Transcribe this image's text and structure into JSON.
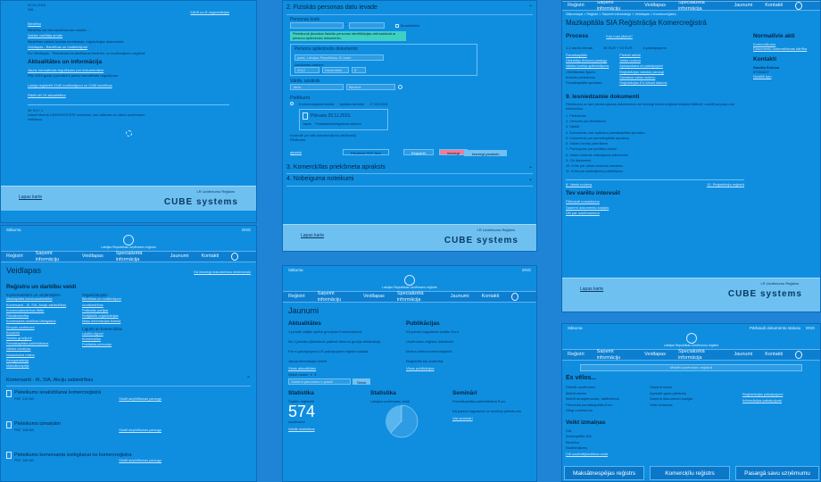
{
  "panel1": {
    "date": "22.01.2015.",
    "sia": "SIA",
    "back_link": "Kārtīt uz šī organizācijas",
    "items": [
      "Biedrība",
      "Biedrība vai cita struktūra kas nosūta ...",
      "Valdes vadītāja amats",
      "Biedrības valdes locekļa iecelšanas, reģistrācijas dokuments",
      "Veidlapas - Biedrības un nodibinājumi",
      "EU Veidlapas - Pieteikums ierakstīšanai biedrību un nodibinājumu registrā"
    ],
    "actual_heading": "Aktualitātes un informācija",
    "actual_items": [
      "Jauns normatīvais regulējums par dokumentiem",
      "Pēc 2015.gada 1.janvāra ir jauns normatīvais regulējums.",
      "Latvija reģistrēti 2340 nodibinājumi un 2456 biedrības"
    ],
    "news_link": "Rādīt vēl 15 aktualitātes",
    "note": "Nr. 5.9 / 1",
    "note_text": "Izdarīt likumā UNIVERSITĀTE izmaiņas, kas attiecas uz vārdu uzņēmumu veikšanu.",
    "footer_link": "Lapas karte",
    "footer_owner": "LR Uzņēmumu Reģistrs",
    "footer_brand": "CUBE systems"
  },
  "panel2": {
    "step2": "2. Fiziskās personas datu ievade",
    "personal_code": "Personas kods",
    "no_code": "Personai nav personas koda",
    "non_resident": "Ārvalstnieks",
    "notice": "Pieteikumā jānorāda fiziskās personas identifikācijas dati saskaņā ar personu apliecinošu dokumentu.",
    "doc_label": "Personu apliecinošs dokuments",
    "doc_placeholder": "pase, Latvijas Republikas ID karte",
    "date_label": "Izdošanas datums",
    "year": "2012",
    "month": "Decembris",
    "day": "8",
    "name_label": "Vārds, uzvārds",
    "name_value": "Jānis",
    "surname_value": "Bērziņš",
    "applications": "Pielikumi",
    "radio_cr": "Komercreģistra fiziskā",
    "due": "Izpildes termiņš",
    "date_value": "17.03.2015.",
    "file_name": "Pilnvara 29.11.2015.",
    "opt1": "Japas",
    "opt2": "Paraksta/iesniegšanas datums",
    "sign_btn": "Iesniegt parakstu",
    "radio_other": "Kontrolē (ar citā dokumentā kā pielikumā)",
    "radio_apply": "Pielikums",
    "add_file": "Pievienot PDF failu",
    "back": "atpakaļ",
    "next": "Reģistrēt",
    "cancel": "Iesniegt",
    "step3": "3. Komercķīlas priekšmeta apraksts",
    "step4": "4. Nobeiguma noteikumi",
    "footer_link": "Lapas karte",
    "footer_owner": "LR Uzņēmumu Reģistrs",
    "footer_brand": "CUBE systems"
  },
  "panel3": {
    "nav": [
      "Reģistri",
      "Saņemt informāciju",
      "Veidlapas",
      "Specializētā informācija",
      "Jaunumi",
      "Kontakti"
    ],
    "breadcrumb": "Sākumlapa > Reģistri > Saņemt informāciju > Veidlapas > Komercreģistrs",
    "title": "Mazkapitāla SIA Reģistrācija Komercreģistrā",
    "process": "Process",
    "process_links": [
      "Kas man jāzina?"
    ],
    "normative": "Normatīvie akti",
    "normative_links": [
      "Komerclikums",
      "Dokumentu noformēšanas kārtība"
    ],
    "contacts": "Kontakti",
    "contact_name": "Sandra Kalniņa",
    "contact_phone": "67031627",
    "contact_email": "Nosūtīt epu",
    "steps": [
      "1-2 darba dienas",
      "35 EUR + 10 EUR",
      "e-pakalpojums"
    ],
    "left_list": [
      "Pamatkapitāls",
      "Dibinātāju lēmuma paraugs",
      "Valdes locekļa apliecinājums",
      "Dibināšanas līgums",
      "Ierakstu pieteikums",
      "Pamatkapitāla apmaksa"
    ],
    "right_list": [
      "Pieteikt atbildi",
      "Valsts nodeva",
      "Apkalpošana un pakalpojumi",
      "Reģistrācijas valodas paraugi",
      "Samaksa valsts nodevu",
      "Reģistrācijas EU fiziskā datums"
    ],
    "docs_heading": "9. Iesniedzamie dokumenti",
    "docs_text": "Pieteikumu un tam pievienojamos dokumentus var iesniegt komercreģistra iestādei klātienē, nosūtīt pa pastu vai elektroniski.",
    "docs_list": [
      "1. Pieteikums",
      "2. Lēmums par dibināšanu",
      "3. Statūti",
      "4. Dokuments, kas apliecina pamatkapitāla apmaksu",
      "5. Dokuments par pamatkapitāla apmaksu",
      "6. Valdes locekļu piekrišana",
      "7. Paziņojums par juridisko adresi",
      "8. Valsts nodevas maksājuma dokuments",
      "9. Citi dokumenti",
      "10. Kvīts par valsts nodevas samaksu",
      "11. Kvīts par sludinājuma publicēšanu"
    ],
    "prev_link": "8. Valsts nodeva",
    "next_link": "10. Reģistrācija reģistrā",
    "interest": "Tev varētu interesēt",
    "interest_links": [
      "Pārbaudi nosaukumu",
      "Saņemt dokumentu kopijas",
      "Vēl par uzņēmumiem"
    ],
    "footer_link": "Lapas karte",
    "footer_owner": "LR Uzņēmumu Reģistrs",
    "footer_brand": "CUBE systems"
  },
  "panel4": {
    "top_left": "Sākuma",
    "top_right": "ENG",
    "org": "Latvijas Republikas Uzņēmumu reģistrs",
    "nav": [
      "Reģistri",
      "Saņemt informāciju",
      "Veidlapas",
      "Specializētā informācija",
      "Jaunumi",
      "Kontakti"
    ],
    "title": "Veidlapas",
    "hint": "Kā iesniegt dokumentus elektroniski",
    "col1_heading": "Reģistru un darbību veidi",
    "col1_sub": "Komersantiem un uzņēmējiem",
    "col1": [
      "Mazkapitāla komercsabiedrība",
      "Komersanti - IK, SIA, Akciju sabiedrības",
      "Komercsabiedrības filiāle",
      "Pārstāvniecība",
      "Komersanta darbības izbeigšana",
      "Eiropas uzņēmumi",
      "Koncerni",
      "Statūtu grozījumi",
      "Pamatkapitāla palielināšana",
      "Valdes izmaiņas",
      "Nosaukuma maiņa",
      "Reorganizācija",
      "Maksātnespēja"
    ],
    "col2_sub": "Organizācijām",
    "col2": [
      "Biedrības un nodibinājumi",
      "Arodbiedrības",
      "Politiskās partijas",
      "Reliģiskās organizācijas",
      "Masu informācijas līdzekļi"
    ],
    "col3_sub": "Līgumi un komercķīlas",
    "col3": [
      "Laulību līgumi",
      "Komercķīlas",
      "Publiskās personas"
    ],
    "accordion": "Komersanti - IK, SIA, Akciju sabiedrības",
    "forms": [
      {
        "title": "Pieteikums ierakstīšanai komercreģistrā",
        "meta": "PDF, 210 KB",
        "link": "Skatīt aizpildīšanas paraugu"
      },
      {
        "title": "Pieteikums izmaiņām",
        "meta": "PDF, 196 KB",
        "link": "Skatīt aizpildīšanas paraugu"
      },
      {
        "title": "Pieteikums komersanta izslēgšanai no komercreģistra",
        "meta": "PDF, 180 KB",
        "link": "Skatīt aizpildīšanas paraugu"
      }
    ]
  },
  "panel5": {
    "top_left": "Sākuma",
    "top_right": "ENG",
    "org": "Latvijas Republikas Uzņēmumu reģistrs",
    "nav": [
      "Reģistri",
      "Saņemt informāciju",
      "Veidlapas",
      "Specializētā informācija",
      "Jaunumi",
      "Kontakti"
    ],
    "title": "Jaunumi",
    "news_heading": "Aktualitātes",
    "news": [
      "1.janvārī stājās spēkā grozījumi Komerclikumā",
      "No 1.janvāra jāiesniedz patiesā labuma guvēja deklarācija",
      "Par e-pakalpojuma LR pakalpojumi reģistra sadaļa",
      "Jauna informācija vietnē"
    ],
    "news_link": "Visas aktualitātes",
    "follow": "Sekot mums",
    "subscribe_placeholder": "Saņemt jaunumus e-pastā",
    "subscribe_btn": "Sekot",
    "pub_heading": "Publikācijas",
    "pubs": [
      "Kā pareizi sagatavot statūtu Euro",
      "Uzņēmumu reģistrs laikrakstā",
      "Maziņi prieka komercreģistrā",
      "Reģistrēts kā uzņēmējs"
    ],
    "pub_link": "Visas publikācijas",
    "stats_heading": "Statistika",
    "stats_label": "Šodien reģistrēti",
    "stats_value": "574",
    "stats_unit": "uzņēmumi",
    "stats_link": "Vairāk statistikas",
    "stats2_heading": "Statistika",
    "stats2_label": "Latvijas uzņēmumu veidi",
    "seminar_heading": "Semināri",
    "seminars": [
      "Pamatkapitāla palielināšana Euro",
      "Kā pareizi sagatavot un iesniegt pieteikumu"
    ],
    "seminar_link": "Visi semināri",
    "chart_slice": 0.62
  },
  "panel6": {
    "top_left": "Sākuma",
    "top_right": "ENG",
    "fav": "Pārbaudi dokumentu statusu",
    "org": "Latvijas Republikas Uzņēmumu reģistrs",
    "nav": [
      "Reģistri",
      "Saņemt informāciju",
      "Veidlapas",
      "Specializētā informācija",
      "Jaunumi",
      "Kontakti"
    ],
    "search_placeholder": "Meklēt uzņēmumu reģistrā",
    "es_heading": "Es vēlos...",
    "es_col1": [
      "Dibināt uzņēmumu",
      "Mainīt adresi",
      "Mainīt amatpersonas, dalībniekus",
      "Pārveidot pamatkapitālu Euro",
      "Slēgt uzņēmumu"
    ],
    "es_col2": [
      "Saņemt izziņu",
      "Apskatīt gada pārskatu",
      "Saņemt dokumentu kopijas",
      "Veikt izmaiņas"
    ],
    "es_col3": [
      "Reģistrācijas pakalpojumi",
      "Informācijas pakalpojumi"
    ],
    "changes_heading": "Veikt izmaiņas",
    "changes": [
      "SIA",
      "Mazkapitāla SIA",
      "Biedrība",
      "Nodibinājums"
    ],
    "changes_link": "Citi uzņēmējdarbības veidi",
    "btn1": "Maksātnespējas reģistrs",
    "btn2": "Komercķīlu reģistrs",
    "btn3": "Pasargā savu uzņēmumu"
  }
}
